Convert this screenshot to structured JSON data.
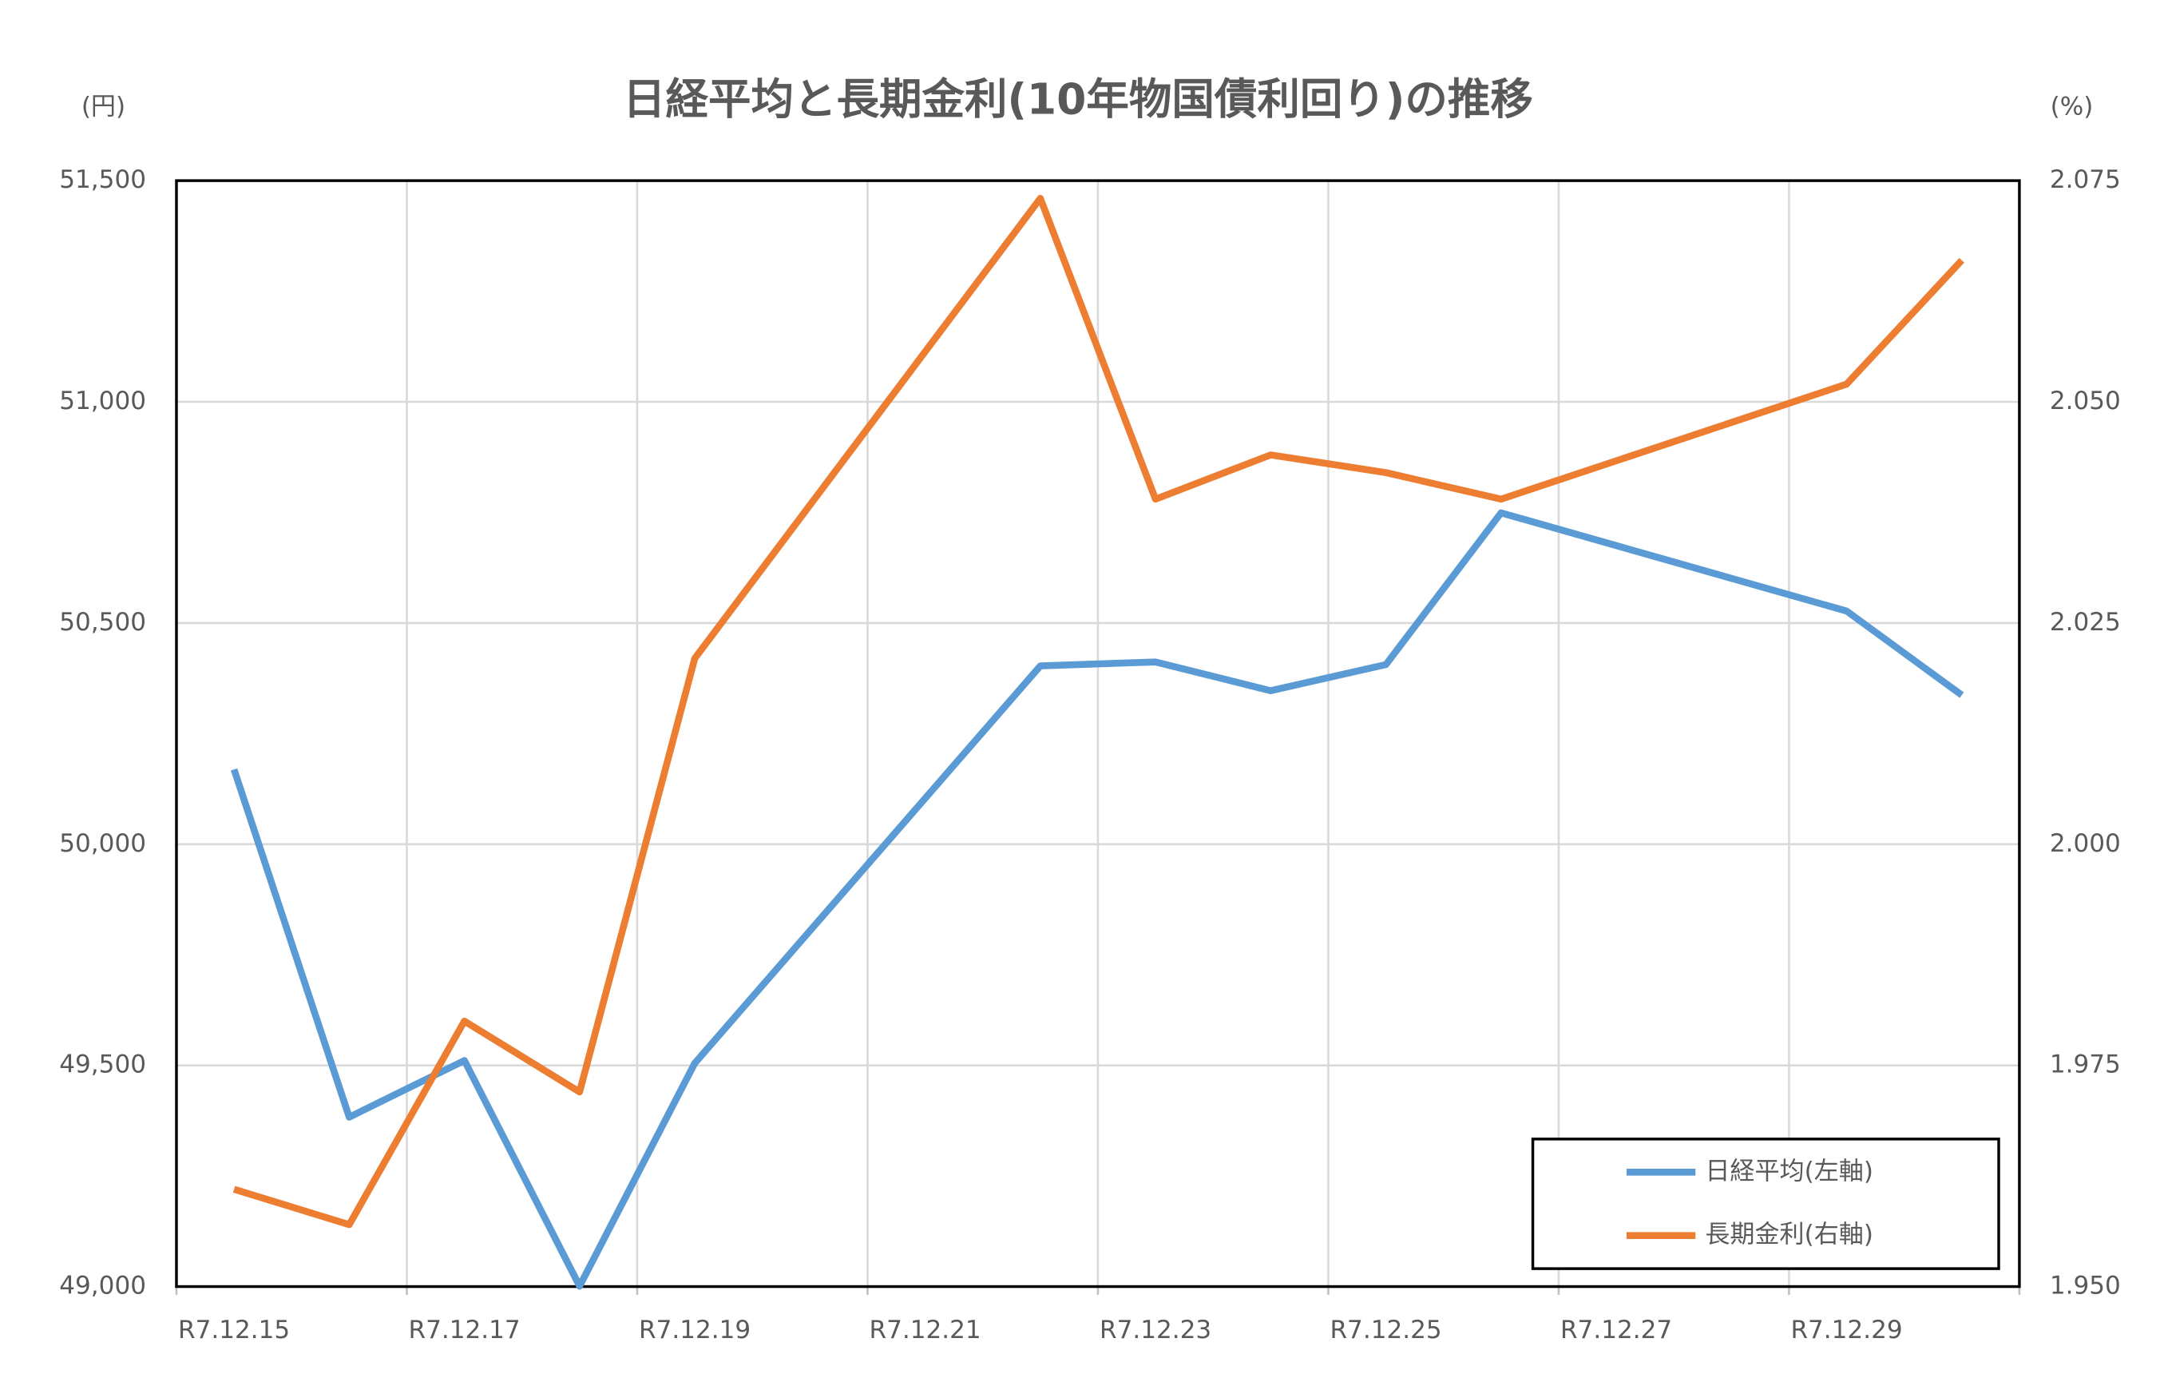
{
  "chart_data": {
    "type": "line",
    "title": "日経平均と長期金利(10年物国債利回り)の推移",
    "y_unit": "(円)",
    "y2_unit": "(%)",
    "x": [
      15,
      16,
      17,
      18,
      19,
      22,
      23,
      24,
      25,
      26,
      29,
      30
    ],
    "xlim": [
      14.5,
      30.5
    ],
    "xticks": [
      {
        "value": 15,
        "label": "R7.12.15"
      },
      {
        "value": 17,
        "label": "R7.12.17"
      },
      {
        "value": 19,
        "label": "R7.12.19"
      },
      {
        "value": 21,
        "label": "R7.12.21"
      },
      {
        "value": 23,
        "label": "R7.12.23"
      },
      {
        "value": 25,
        "label": "R7.12.25"
      },
      {
        "value": 27,
        "label": "R7.12.27"
      },
      {
        "value": 29,
        "label": "R7.12.29"
      }
    ],
    "ylim": [
      49000,
      51500
    ],
    "yticks": [
      {
        "value": 49000,
        "label": "49,000"
      },
      {
        "value": 49500,
        "label": "49,500"
      },
      {
        "value": 50000,
        "label": "50,000"
      },
      {
        "value": 50500,
        "label": "50,500"
      },
      {
        "value": 51000,
        "label": "51,000"
      },
      {
        "value": 51500,
        "label": "51,500"
      }
    ],
    "y2lim": [
      1.95,
      2.075
    ],
    "y2ticks": [
      {
        "value": 1.95,
        "label": "1.950"
      },
      1.975,
      {
        "value": 2.0,
        "label": "2.000"
      },
      2.025,
      {
        "value": 2.05,
        "label": "2.050"
      },
      2.075
    ],
    "grid": true,
    "legend": "lower right",
    "series": [
      {
        "name": "日経平均(左軸)",
        "color": "#5b9bd5",
        "axis": "y",
        "values": [
          50169,
          49383,
          49511,
          49001,
          49505,
          50403,
          50412,
          50347,
          50406,
          50749,
          50527,
          50337
        ]
      },
      {
        "name": "長期金利(右軸)",
        "color": "#ed7d31",
        "axis": "y2",
        "values": [
          1.961,
          1.957,
          1.98,
          1.972,
          2.021,
          2.073,
          2.039,
          2.044,
          2.042,
          2.039,
          2.052,
          2.066
        ]
      }
    ]
  }
}
